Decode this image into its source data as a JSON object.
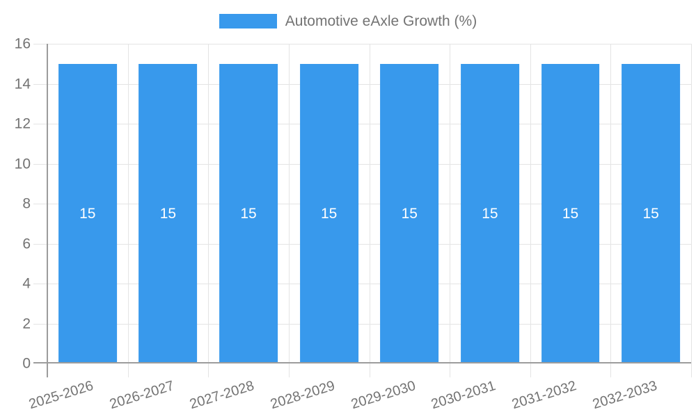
{
  "legend": {
    "label": "Automotive eAxle Growth (%)"
  },
  "chart_data": {
    "type": "bar",
    "title": "Automotive eAxle Growth (%)",
    "series_name": "Automotive eAxle Growth (%)",
    "categories": [
      "2025-2026",
      "2026-2027",
      "2027-2028",
      "2028-2029",
      "2029-2030",
      "2030-2031",
      "2031-2032",
      "2032-2033"
    ],
    "values": [
      15,
      15,
      15,
      15,
      15,
      15,
      15,
      15
    ],
    "bar_value_labels": [
      "15",
      "15",
      "15",
      "15",
      "15",
      "15",
      "15",
      "15"
    ],
    "xlabel": "",
    "ylabel": "",
    "ylim": [
      0,
      16
    ],
    "yticks": [
      0,
      2,
      4,
      6,
      8,
      10,
      12,
      14,
      16
    ],
    "legend_position": "top",
    "grid": true,
    "x_label_rotation_deg": -17,
    "colors": {
      "bar": "#3899EC",
      "grid": "#E4E4E4",
      "axis": "#9C9C9C",
      "tick_text": "#737373",
      "bar_label": "#FFFFFF"
    }
  }
}
